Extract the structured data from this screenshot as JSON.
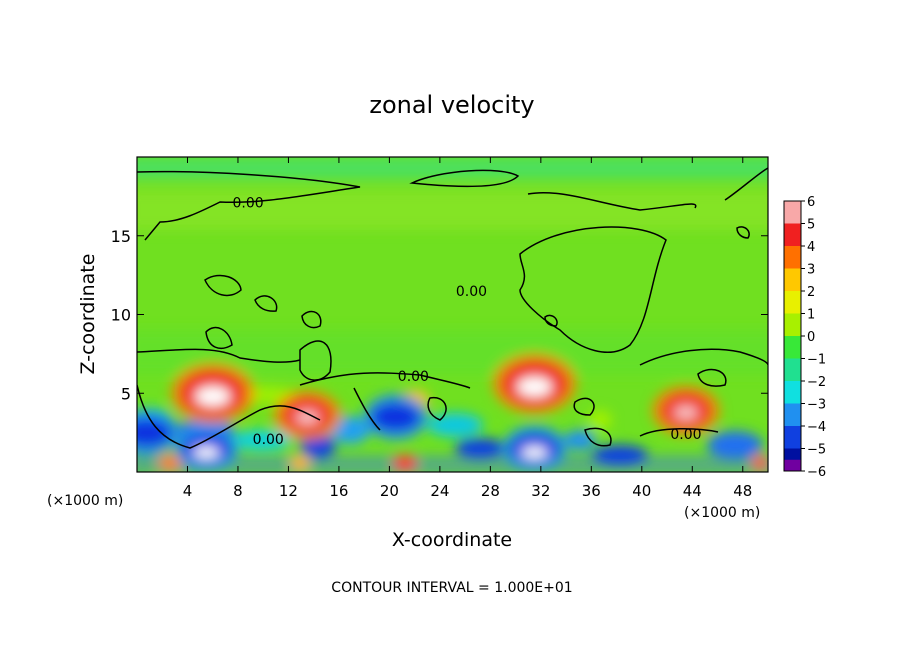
{
  "chart_data": {
    "type": "heatmap",
    "title": "zonal velocity",
    "xlabel": "X-coordinate",
    "ylabel": "Z-coordinate",
    "x_unit_left": "(×1000 m)",
    "x_unit_right": "(×1000 m)",
    "xlim": [
      0,
      50
    ],
    "ylim": [
      0,
      20
    ],
    "x_ticks": [
      4,
      8,
      12,
      16,
      20,
      24,
      28,
      32,
      36,
      40,
      44,
      48
    ],
    "y_ticks": [
      5,
      10,
      15
    ],
    "colorbar": {
      "ticks": [
        6,
        5,
        4,
        3,
        2,
        1,
        0,
        -1,
        -2,
        -3,
        -4,
        -5,
        -6
      ],
      "tick_labels": [
        "6",
        "5",
        "4",
        "3",
        "2",
        "1",
        "0",
        "−1",
        "−2",
        "−3",
        "−4",
        "−5",
        "−6"
      ],
      "colors": [
        "#f8a8a8",
        "#f02020",
        "#ff7000",
        "#ffc800",
        "#e8f000",
        "#a8f000",
        "#38e838",
        "#20e090",
        "#10e0e0",
        "#2090f0",
        "#1040e0",
        "#0010a0",
        "#7000a0"
      ]
    },
    "contour_labels": [
      {
        "text": "0.00",
        "x": 8.8,
        "y": 17.1
      },
      {
        "text": "0.00",
        "x": 26.5,
        "y": 11.5
      },
      {
        "text": "0.00",
        "x": 21.9,
        "y": 6.1
      },
      {
        "text": "0.00",
        "x": 10.4,
        "y": 2.1
      },
      {
        "text": "0.00",
        "x": 43.5,
        "y": 2.4
      }
    ],
    "features": [
      {
        "kind": "positive",
        "x": 6.0,
        "y": 5.0,
        "value": 6
      },
      {
        "kind": "positive",
        "x": 31.5,
        "y": 5.6,
        "value": 6
      },
      {
        "kind": "positive",
        "x": 43.5,
        "y": 3.9,
        "value": 5
      },
      {
        "kind": "positive",
        "x": 13.5,
        "y": 3.6,
        "value": 4
      },
      {
        "kind": "negative",
        "x": 20.5,
        "y": 3.5,
        "value": -4
      },
      {
        "kind": "negative",
        "x": 5.5,
        "y": 1.5,
        "value": -5
      },
      {
        "kind": "negative",
        "x": 31.5,
        "y": 1.5,
        "value": -5
      },
      {
        "kind": "negative",
        "x": 0.8,
        "y": 2.5,
        "value": -4
      }
    ],
    "grid": false,
    "legend": "colorbar right",
    "footer": "CONTOUR INTERVAL = 1.000E+01"
  }
}
